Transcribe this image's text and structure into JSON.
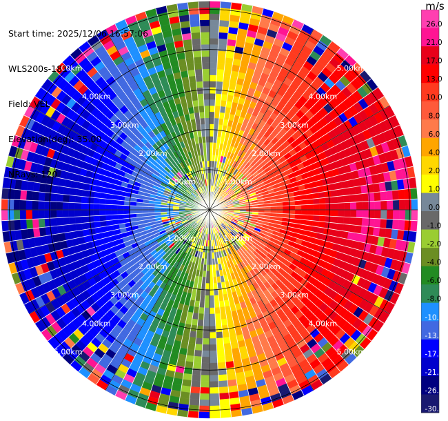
{
  "header": {
    "lines": [
      "Start time: 2025/12/06 16:57:06",
      "WLS200s-181",
      "Field: VEL",
      "Elevation(deg): 35.00",
      "NRays: 120"
    ]
  },
  "colorbar": {
    "unit": "m/s",
    "tick_labels": [
      "26.0",
      "21.0",
      "17.0",
      "13.0",
      "10.0",
      "8.0",
      "6.0",
      "4.0",
      "2.0",
      "1.0",
      "0.0",
      "-1.0",
      "-2.0",
      "-4.0",
      "-6.0",
      "-8.0",
      "-10.0",
      "-13.0",
      "-17.0",
      "-21.0",
      "-26.0",
      "-30.0"
    ],
    "bins": [
      {
        "lo": 26,
        "hi": 30,
        "color": "#ff3fb0"
      },
      {
        "lo": 21,
        "hi": 26,
        "color": "#ff1493"
      },
      {
        "lo": 17,
        "hi": 21,
        "color": "#e8001a"
      },
      {
        "lo": 13,
        "hi": 17,
        "color": "#ff0000"
      },
      {
        "lo": 10,
        "hi": 13,
        "color": "#ff3a1f"
      },
      {
        "lo": 8,
        "hi": 10,
        "color": "#ff5a3a"
      },
      {
        "lo": 6,
        "hi": 8,
        "color": "#ff7a4a"
      },
      {
        "lo": 4,
        "hi": 6,
        "color": "#ffa500"
      },
      {
        "lo": 2,
        "hi": 4,
        "color": "#ffd700"
      },
      {
        "lo": 1,
        "hi": 2,
        "color": "#ffff00"
      },
      {
        "lo": 0,
        "hi": 1,
        "color": "#778899"
      },
      {
        "lo": -1,
        "hi": 0,
        "color": "#696969"
      },
      {
        "lo": -2,
        "hi": -1,
        "color": "#9acd32"
      },
      {
        "lo": -4,
        "hi": -2,
        "color": "#6b8e23"
      },
      {
        "lo": -6,
        "hi": -4,
        "color": "#228b22"
      },
      {
        "lo": -8,
        "hi": -6,
        "color": "#2e8b57"
      },
      {
        "lo": -10,
        "hi": -8,
        "color": "#1e90ff"
      },
      {
        "lo": -13,
        "hi": -10,
        "color": "#4169e1"
      },
      {
        "lo": -17,
        "hi": -13,
        "color": "#0000ff"
      },
      {
        "lo": -21,
        "hi": -17,
        "color": "#0000cd"
      },
      {
        "lo": -26,
        "hi": -21,
        "color": "#000080"
      },
      {
        "lo": -30,
        "hi": -26,
        "color": "#191970"
      }
    ]
  },
  "chart_data": {
    "type": "heatmap",
    "subtype": "polar-ppi",
    "field": "VEL",
    "unit": "m/s",
    "nrays": 120,
    "elevation_deg": 35.0,
    "range_rings_km": [
      1.0,
      2.0,
      3.0,
      4.0,
      5.0
    ],
    "ring_labels": [
      "1.00km",
      "2.00km",
      "3.00km",
      "4.00km",
      "5.00km"
    ],
    "max_range_km": 5.2,
    "radial_velocity_pattern": {
      "max_positive_direction": "east",
      "max_negative_direction": "west",
      "zero_line_axis": "north-south",
      "peak_magnitude_m_s": 19
    },
    "color_range": [
      -30,
      30
    ]
  }
}
